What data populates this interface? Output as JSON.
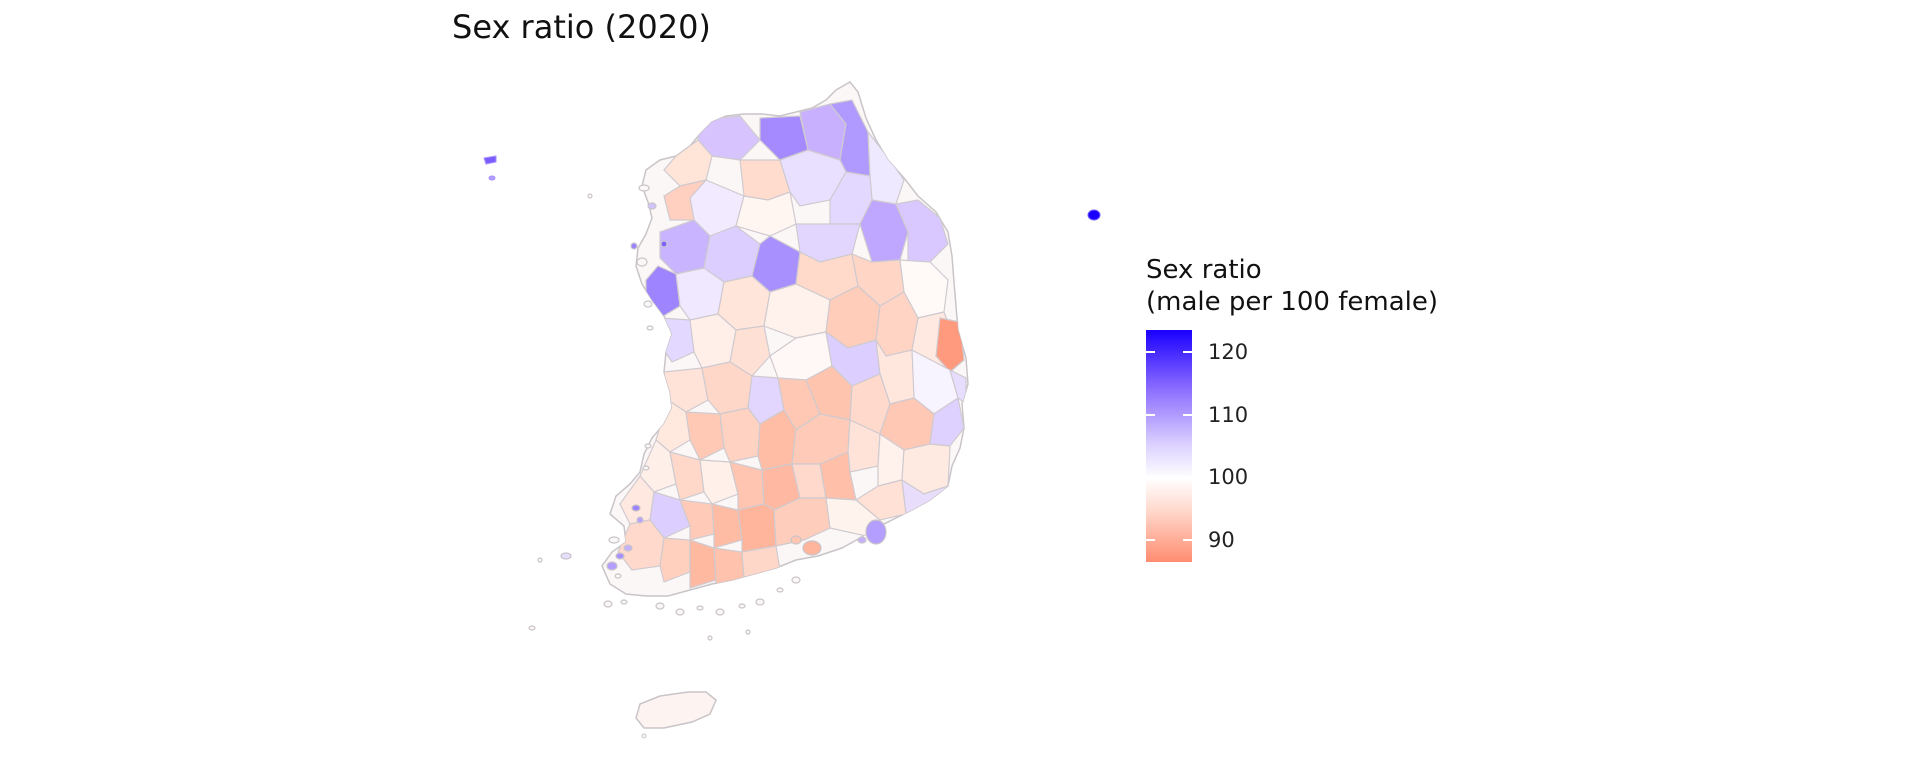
{
  "title": "Sex ratio (2020)",
  "legend": {
    "title_line1": "Sex ratio",
    "title_line2": "(male per 100 female)",
    "range": [
      86.5,
      123.5
    ],
    "ticks": [
      {
        "value": 120,
        "label": "120"
      },
      {
        "value": 110,
        "label": "110"
      },
      {
        "value": 100,
        "label": "100"
      },
      {
        "value": 90,
        "label": "90"
      }
    ],
    "colors": {
      "high": "#1a00ff",
      "mid_high": "#8a6bff",
      "neutral": "#ffffff",
      "low": "#ff8c70"
    }
  }
}
